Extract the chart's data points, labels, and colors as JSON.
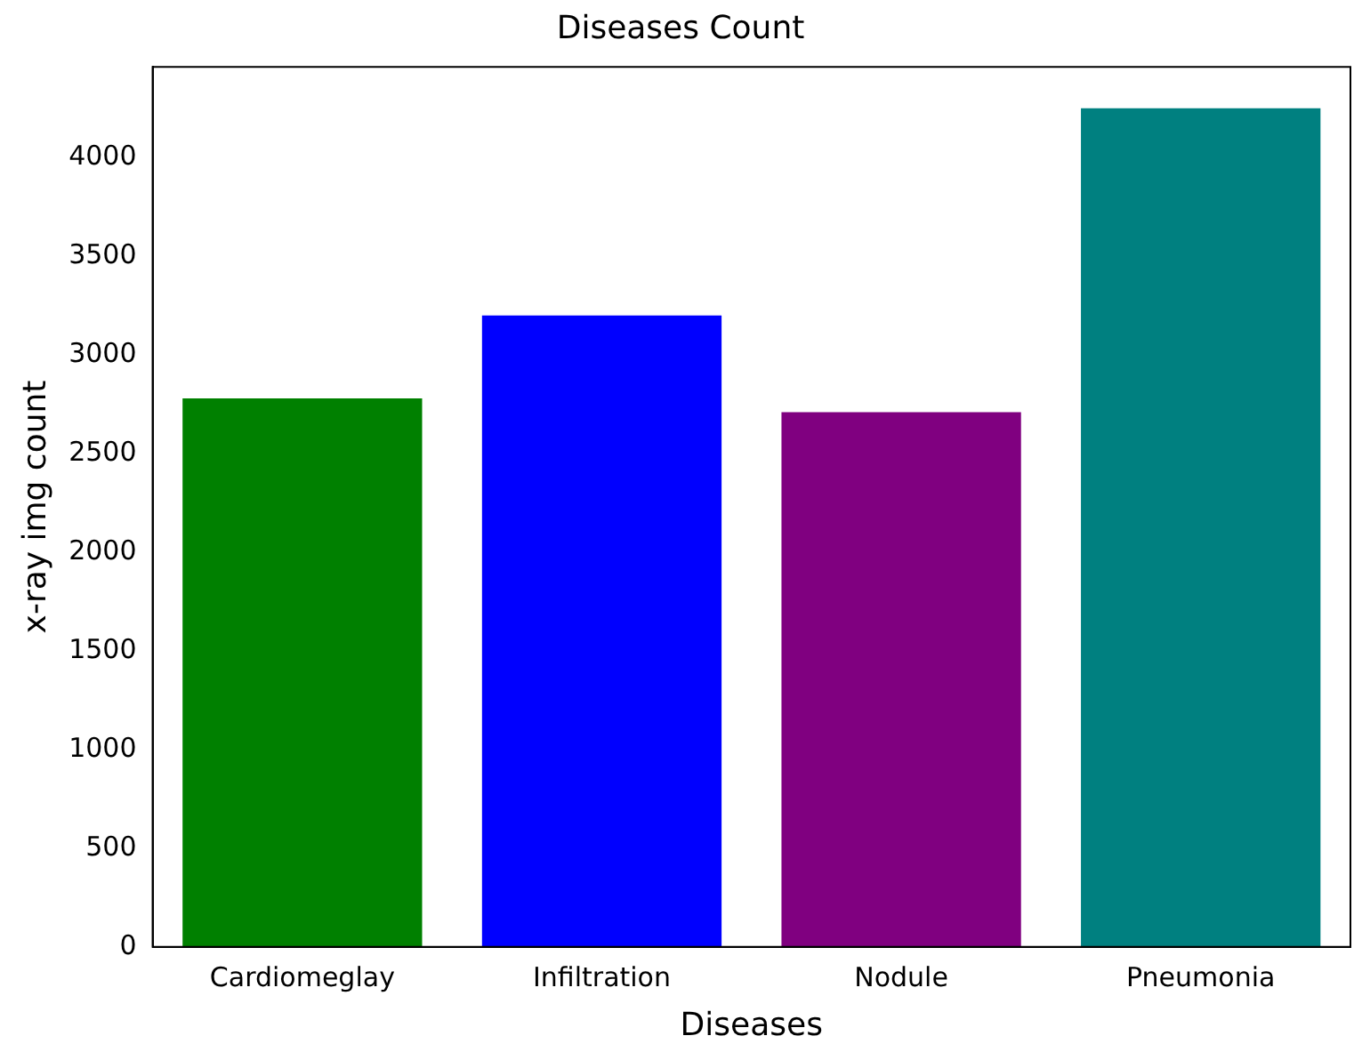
{
  "chart_data": {
    "type": "bar",
    "title": "Diseases Count",
    "xlabel": "Diseases",
    "ylabel": "x-ray img count",
    "categories": [
      "Cardiomeglay",
      "Infiltration",
      "Nodule",
      "Pneumonia"
    ],
    "values": [
      2780,
      3200,
      2710,
      4250
    ],
    "colors": [
      "#008000",
      "#0000ff",
      "#800080",
      "#008080"
    ],
    "ylim": [
      0,
      4460
    ],
    "yticks": [
      0,
      500,
      1000,
      1500,
      2000,
      2500,
      3000,
      3500,
      4000
    ],
    "grid": false,
    "legend": false
  }
}
